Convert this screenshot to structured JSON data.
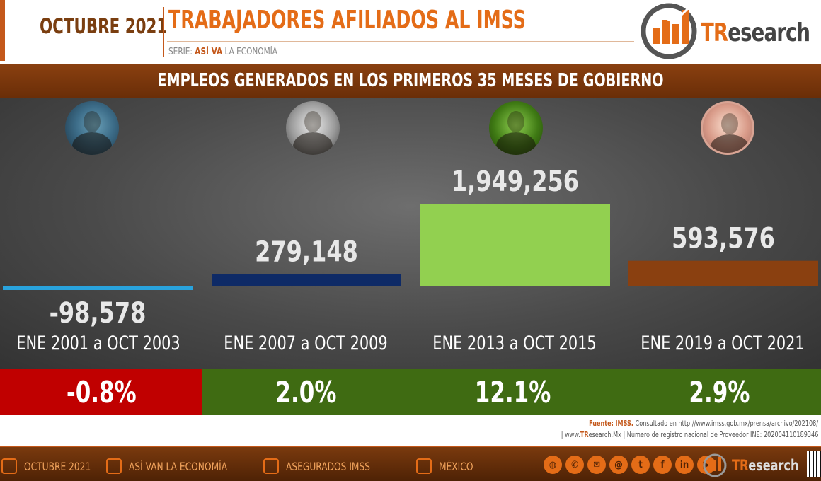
{
  "header": {
    "month": "OCTUBRE 2021",
    "title": "TRABAJADORES AFILIADOS AL IMSS",
    "series_prefix": "SERIE:",
    "series_name": "ASÍ VA",
    "series_suffix": "LA ECONOMÍA",
    "logo_tr": "TR",
    "logo_rest": "esearch"
  },
  "band": {
    "title": "EMPLEOS GENERADOS EN LOS PRIMEROS 35 MESES DE GOBIERNO"
  },
  "colors": {
    "series": [
      "#29a3dd",
      "#0e2a66",
      "#92d050",
      "#8a4010"
    ],
    "pct_bg": [
      "#c00000",
      "#3f6b12",
      "#3f6b12",
      "#3f6b12"
    ],
    "accent": "#e46c17"
  },
  "chart_data": {
    "type": "bar",
    "title": "EMPLEOS GENERADOS EN LOS PRIMEROS 35 MESES DE GOBIERNO",
    "categories": [
      "ENE 2001 a OCT 2003",
      "ENE 2007 a OCT 2009",
      "ENE 2013 a OCT 2015",
      "ENE 2019 a OCT 2021"
    ],
    "values": [
      -98578,
      279148,
      1949256,
      593576
    ],
    "value_labels": [
      "-98,578",
      "279,148",
      "1,949,256",
      "593,576"
    ],
    "percentages": [
      "-0.8%",
      "2.0%",
      "12.1%",
      "2.9%"
    ],
    "ylim": [
      -98578,
      1949256
    ],
    "grid": false,
    "legend": "none"
  },
  "source": {
    "fuente_label": "Fuente:",
    "fuente_org": "IMSS.",
    "fuente_text": "Consultado en http://www.imss.gob.mx/prensa/archivo/202108/",
    "web_prefix": "| www.",
    "web_tr": "TR",
    "web_suffix": "esearch.Mx",
    "registry": "| Número de registro nacional de Proveedor INE: 202004110189346"
  },
  "footer": {
    "items": [
      "OCTUBRE 2021",
      "ASÍ VAN LA ECONOMÍA",
      "ASEGURADOS IMSS",
      "MÉXICO"
    ],
    "social_icons": [
      "globe-icon",
      "whatsapp-icon",
      "messenger-icon",
      "email-icon",
      "twitter-icon",
      "facebook-icon",
      "linkedin-icon",
      "youtube-icon"
    ],
    "logo_tr": "TR",
    "logo_rest": "esearch"
  }
}
